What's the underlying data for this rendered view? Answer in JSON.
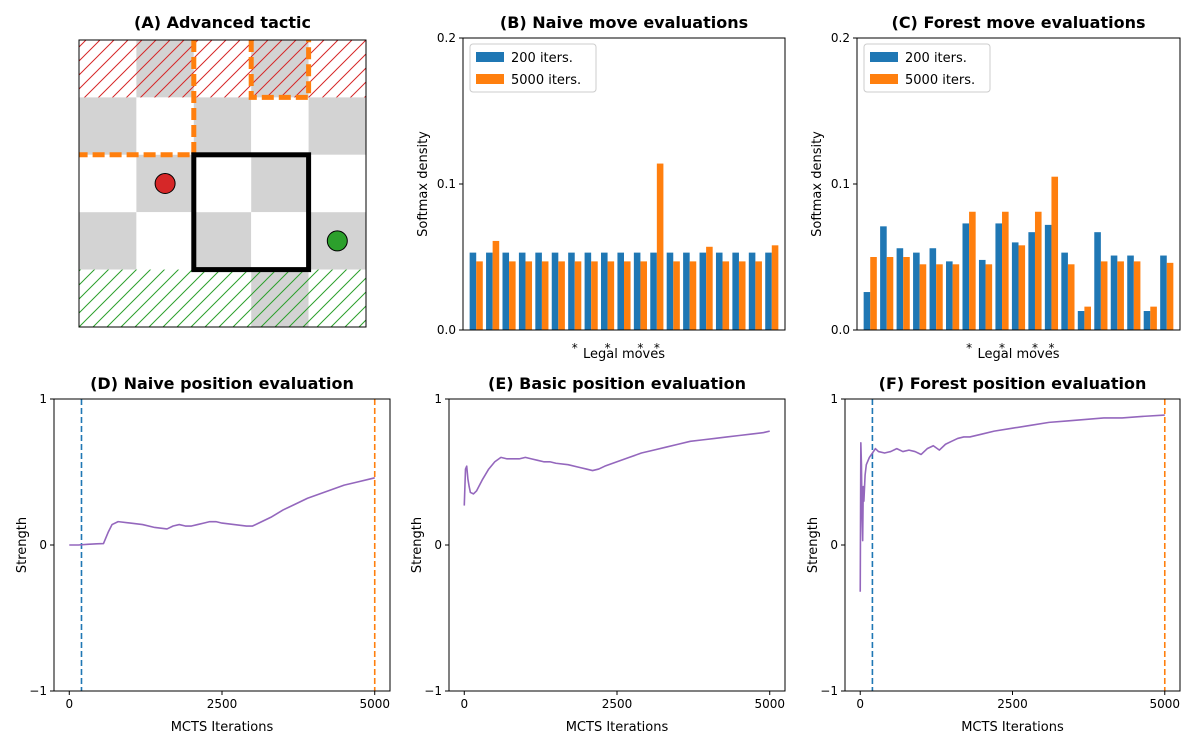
{
  "colors": {
    "blue": "#1f77b4",
    "orange": "#ff7f0e",
    "purple": "#9467bd",
    "red": "#d62728",
    "green": "#2ca02c",
    "gray": "#d3d3d3",
    "black": "#000000"
  },
  "chart_data": [
    {
      "panel": "A",
      "type": "board",
      "title": "(A) Advanced tactic",
      "rows": 5,
      "cols": 5,
      "gray_cells": [
        [
          0,
          1
        ],
        [
          0,
          3
        ],
        [
          1,
          0
        ],
        [
          1,
          2
        ],
        [
          1,
          4
        ],
        [
          2,
          1
        ],
        [
          2,
          3
        ],
        [
          3,
          0
        ],
        [
          3,
          2
        ],
        [
          3,
          4
        ],
        [
          4,
          3
        ]
      ],
      "red_hatch_row": 0,
      "green_hatch_row": 4,
      "red_piece": [
        2,
        1
      ],
      "green_piece": [
        3,
        4
      ],
      "highlight_box": {
        "row_start": 2,
        "col_start": 2,
        "row_end": 4,
        "col_end": 4
      },
      "dashed_path": [
        [
          0,
          2
        ],
        [
          2,
          2
        ],
        [
          2,
          0
        ]
      ],
      "dashed_path2": [
        [
          0,
          3
        ],
        [
          1,
          3
        ],
        [
          1,
          4
        ],
        [
          0,
          4
        ]
      ]
    },
    {
      "panel": "B",
      "type": "bar",
      "title": "(B) Naive move evaluations",
      "xlabel": "Legal moves",
      "ylabel": "Softmax density",
      "ylim": [
        0,
        0.2
      ],
      "yticks": [
        0.0,
        0.1,
        0.2
      ],
      "ytick_labels": [
        "0.0",
        "0.1",
        "0.2"
      ],
      "legend_position": "upper-left",
      "starred_indices": [
        6,
        8,
        10,
        11
      ],
      "star_label": "*",
      "series": [
        {
          "name": "200 iters.",
          "values": [
            0.053,
            0.053,
            0.053,
            0.053,
            0.053,
            0.053,
            0.053,
            0.053,
            0.053,
            0.053,
            0.053,
            0.053,
            0.053,
            0.053,
            0.053,
            0.053,
            0.053,
            0.053,
            0.053
          ]
        },
        {
          "name": "5000 iters.",
          "values": [
            0.047,
            0.061,
            0.047,
            0.047,
            0.047,
            0.047,
            0.047,
            0.047,
            0.047,
            0.047,
            0.047,
            0.114,
            0.047,
            0.047,
            0.057,
            0.047,
            0.047,
            0.047,
            0.058
          ]
        }
      ]
    },
    {
      "panel": "C",
      "type": "bar",
      "title": "(C) Forest move evaluations",
      "xlabel": "Legal moves",
      "ylabel": "Softmax density",
      "ylim": [
        0,
        0.2
      ],
      "yticks": [
        0.0,
        0.1,
        0.2
      ],
      "ytick_labels": [
        "0.0",
        "0.1",
        "0.2"
      ],
      "legend_position": "upper-left",
      "starred_indices": [
        6,
        8,
        10,
        11
      ],
      "star_label": "*",
      "series": [
        {
          "name": "200 iters.",
          "values": [
            0.026,
            0.071,
            0.056,
            0.053,
            0.056,
            0.047,
            0.073,
            0.048,
            0.073,
            0.06,
            0.067,
            0.072,
            0.053,
            0.013,
            0.067,
            0.051,
            0.051,
            0.013,
            0.051
          ]
        },
        {
          "name": "5000 iters.",
          "values": [
            0.05,
            0.05,
            0.05,
            0.045,
            0.045,
            0.045,
            0.081,
            0.045,
            0.081,
            0.058,
            0.081,
            0.105,
            0.045,
            0.016,
            0.047,
            0.047,
            0.047,
            0.016,
            0.046
          ]
        }
      ]
    },
    {
      "panel": "D",
      "type": "line",
      "title": "(D) Naive position evaluation",
      "xlabel": "MCTS Iterations",
      "ylabel": "Strength",
      "xlim": [
        -250,
        5250
      ],
      "ylim": [
        -1,
        1
      ],
      "xticks": [
        0,
        2500,
        5000
      ],
      "xtick_labels": [
        "0",
        "2500",
        "5000"
      ],
      "yticks": [
        -1,
        0,
        1
      ],
      "ytick_labels": [
        "−1",
        "0",
        "1"
      ],
      "vlines": [
        {
          "x": 200,
          "color": "blue"
        },
        {
          "x": 5000,
          "color": "orange"
        }
      ],
      "x": [
        0,
        150,
        300,
        450,
        560,
        640,
        700,
        800,
        1000,
        1200,
        1400,
        1600,
        1700,
        1800,
        1900,
        2000,
        2100,
        2200,
        2300,
        2400,
        2500,
        2700,
        2900,
        3000,
        3100,
        3300,
        3500,
        3700,
        3900,
        4100,
        4300,
        4500,
        4700,
        4900,
        5000
      ],
      "y": [
        0,
        0,
        0.005,
        0.008,
        0.01,
        0.09,
        0.14,
        0.16,
        0.15,
        0.14,
        0.12,
        0.11,
        0.13,
        0.14,
        0.13,
        0.13,
        0.14,
        0.15,
        0.16,
        0.16,
        0.15,
        0.14,
        0.13,
        0.13,
        0.15,
        0.19,
        0.24,
        0.28,
        0.32,
        0.35,
        0.38,
        0.41,
        0.43,
        0.45,
        0.46
      ]
    },
    {
      "panel": "E",
      "type": "line",
      "title": "(E) Basic position evaluation",
      "xlabel": "MCTS Iterations",
      "ylabel": "",
      "ylabel_right": "Strength",
      "xlim": [
        -250,
        5250
      ],
      "ylim": [
        -1,
        1
      ],
      "xticks": [
        0,
        2500,
        5000
      ],
      "xtick_labels": [
        "0",
        "2500",
        "5000"
      ],
      "yticks": [
        -1,
        0,
        1
      ],
      "ytick_labels": [
        "−1",
        "0",
        "1"
      ],
      "vlines": [],
      "x": [
        0,
        20,
        40,
        60,
        80,
        100,
        150,
        200,
        300,
        400,
        500,
        600,
        700,
        800,
        900,
        1000,
        1100,
        1200,
        1300,
        1400,
        1500,
        1700,
        1900,
        2000,
        2100,
        2200,
        2300,
        2500,
        2700,
        2900,
        3100,
        3300,
        3500,
        3700,
        3900,
        4100,
        4300,
        4500,
        4700,
        4900,
        5000
      ],
      "y": [
        0.27,
        0.52,
        0.54,
        0.45,
        0.4,
        0.36,
        0.35,
        0.37,
        0.45,
        0.52,
        0.57,
        0.6,
        0.59,
        0.59,
        0.59,
        0.6,
        0.59,
        0.58,
        0.57,
        0.57,
        0.56,
        0.55,
        0.53,
        0.52,
        0.51,
        0.52,
        0.54,
        0.57,
        0.6,
        0.63,
        0.65,
        0.67,
        0.69,
        0.71,
        0.72,
        0.73,
        0.74,
        0.75,
        0.76,
        0.77,
        0.78
      ]
    },
    {
      "panel": "F",
      "type": "line",
      "title": "(F) Forest position evaluation",
      "xlabel": "MCTS Iterations",
      "ylabel": "",
      "ylabel_right": "Strength",
      "xlim": [
        -250,
        5250
      ],
      "ylim": [
        -1,
        1
      ],
      "xticks": [
        0,
        2500,
        5000
      ],
      "xtick_labels": [
        "0",
        "2500",
        "5000"
      ],
      "yticks": [
        -1,
        0,
        1
      ],
      "ytick_labels": [
        "−1",
        "0",
        "1"
      ],
      "vlines": [
        {
          "x": 200,
          "color": "blue"
        },
        {
          "x": 5000,
          "color": "orange"
        }
      ],
      "x": [
        0,
        10,
        20,
        30,
        40,
        50,
        60,
        80,
        100,
        150,
        200,
        250,
        300,
        400,
        500,
        600,
        700,
        800,
        900,
        1000,
        1100,
        1200,
        1300,
        1400,
        1500,
        1600,
        1700,
        1800,
        2000,
        2200,
        2500,
        2800,
        3100,
        3400,
        3700,
        4000,
        4300,
        4600,
        5000
      ],
      "y": [
        -0.32,
        0.7,
        0.55,
        0.2,
        0.03,
        0.4,
        0.3,
        0.48,
        0.55,
        0.6,
        0.63,
        0.66,
        0.64,
        0.63,
        0.64,
        0.66,
        0.64,
        0.65,
        0.64,
        0.62,
        0.66,
        0.68,
        0.65,
        0.69,
        0.71,
        0.73,
        0.74,
        0.74,
        0.76,
        0.78,
        0.8,
        0.82,
        0.84,
        0.85,
        0.86,
        0.87,
        0.87,
        0.88,
        0.89
      ]
    }
  ]
}
